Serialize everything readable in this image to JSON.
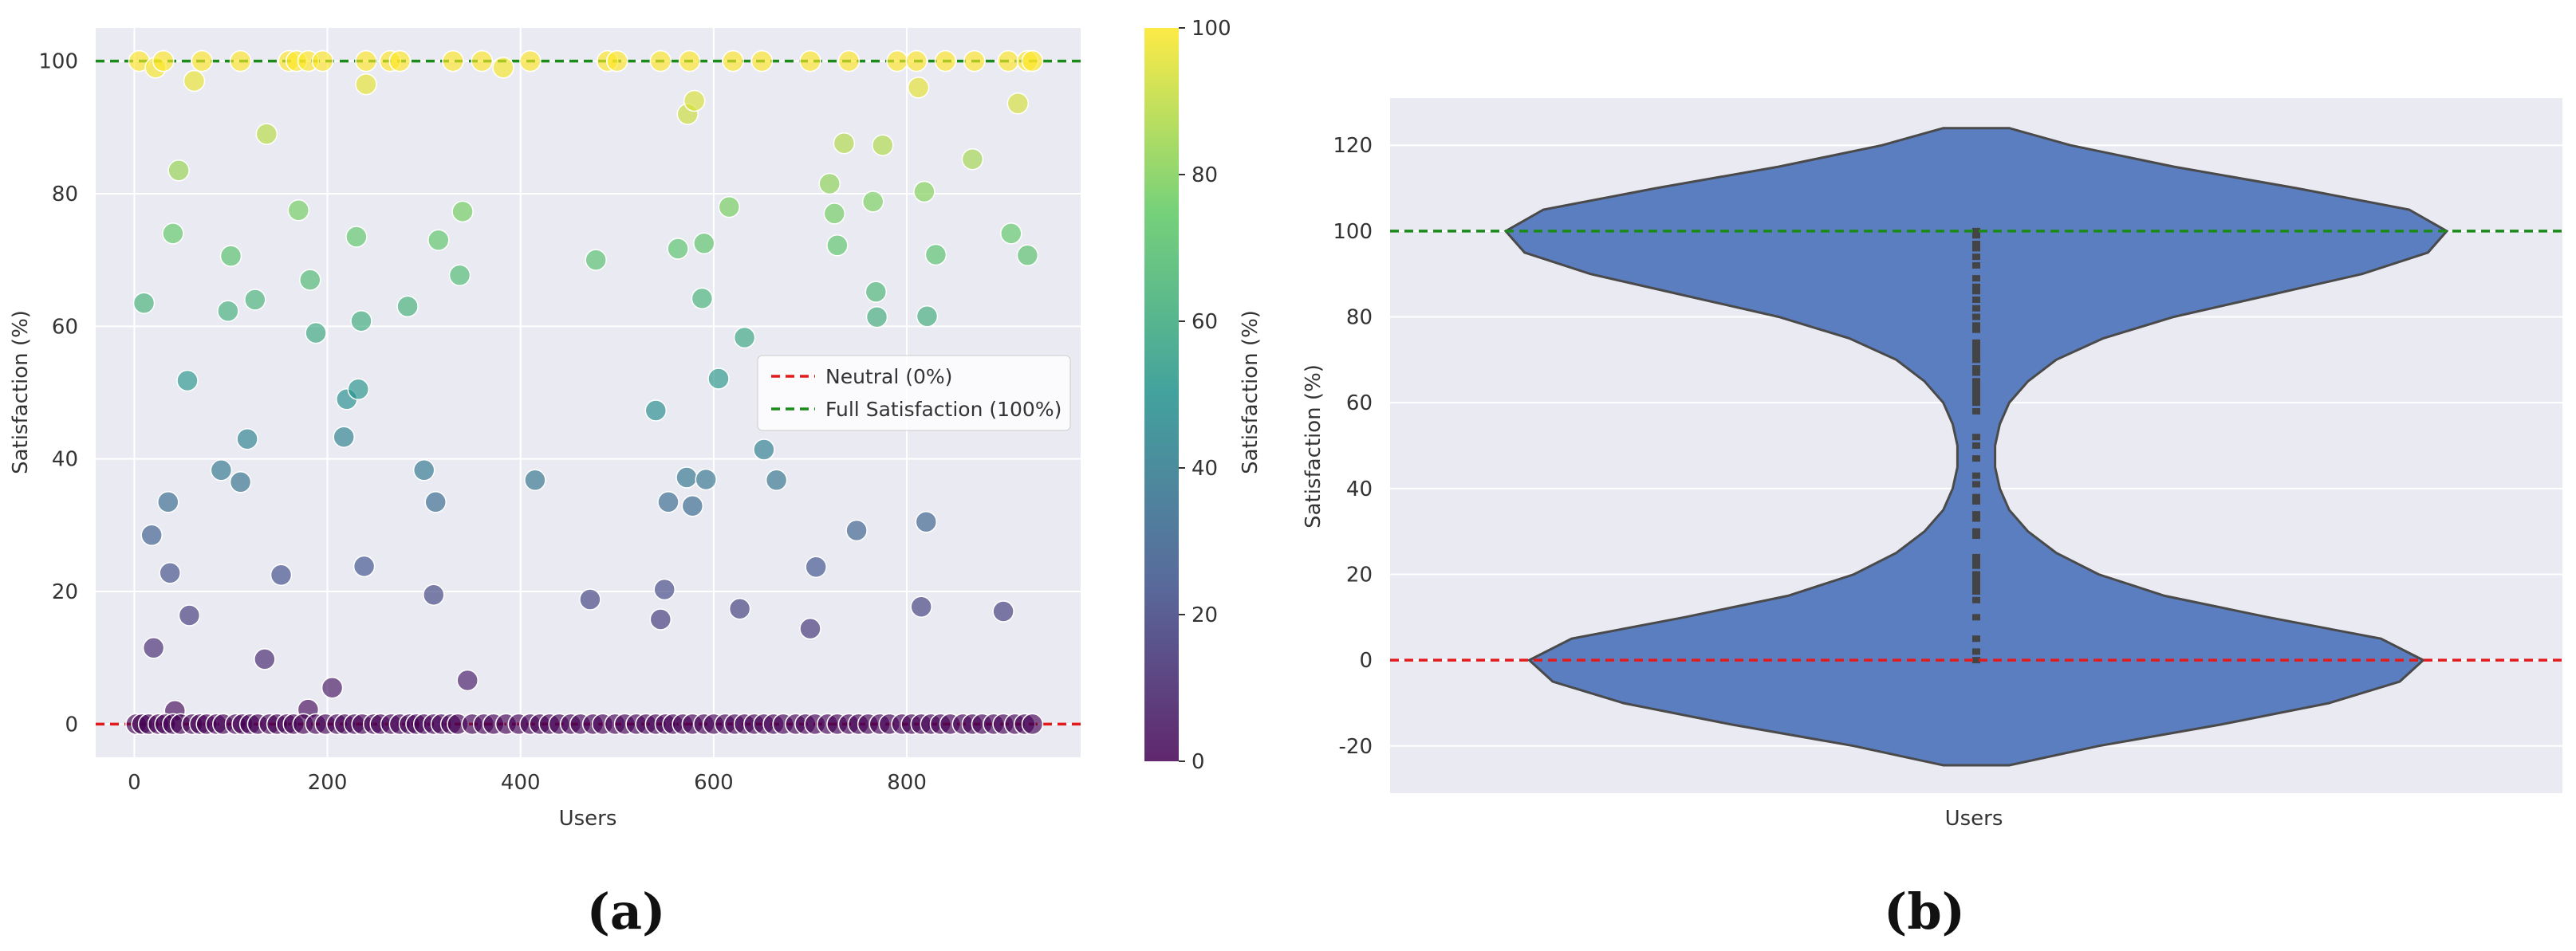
{
  "chart_data": [
    {
      "panel_label": "(a)",
      "type": "scatter",
      "title": "",
      "xlabel": "Users",
      "ylabel": "Satisfaction (%)",
      "xlim": [
        -40,
        980
      ],
      "ylim": [
        -5,
        105
      ],
      "xticks": [
        0,
        200,
        400,
        600,
        800
      ],
      "yticks": [
        0,
        20,
        40,
        60,
        80,
        100
      ],
      "grid": true,
      "legend_position": "center-right",
      "colorbar": {
        "label": "Satisfaction (%)",
        "ticks": [
          0,
          20,
          40,
          60,
          80,
          100
        ],
        "colormap": "viridis"
      },
      "reference_lines": [
        {
          "name": "Neutral (0%)",
          "y": 0,
          "color": "#e31a1c",
          "style": "dashed"
        },
        {
          "name": "Full Satisfaction (100%)",
          "y": 100,
          "color": "#1a8a1a",
          "style": "dashed"
        }
      ],
      "points": [
        [
          10,
          63.5
        ],
        [
          18,
          28.5
        ],
        [
          20,
          11.5
        ],
        [
          35,
          33.5
        ],
        [
          37,
          22.8
        ],
        [
          40,
          74
        ],
        [
          42,
          2
        ],
        [
          46,
          83.5
        ],
        [
          55,
          51.8
        ],
        [
          57,
          16.4
        ],
        [
          62,
          97
        ],
        [
          90,
          38.3
        ],
        [
          97,
          62.3
        ],
        [
          100,
          70.6
        ],
        [
          110,
          36.5
        ],
        [
          117,
          43
        ],
        [
          125,
          64
        ],
        [
          135,
          9.8
        ],
        [
          137,
          89
        ],
        [
          152,
          22.5
        ],
        [
          170,
          77.5
        ],
        [
          180,
          2.2
        ],
        [
          182,
          67
        ],
        [
          188,
          59
        ],
        [
          205,
          5.5
        ],
        [
          217,
          43.3
        ],
        [
          220,
          49
        ],
        [
          230,
          73.5
        ],
        [
          232,
          50.5
        ],
        [
          235,
          60.8
        ],
        [
          238,
          23.8
        ],
        [
          240,
          96.5
        ],
        [
          283,
          63
        ],
        [
          300,
          38.3
        ],
        [
          310,
          19.5
        ],
        [
          312,
          33.5
        ],
        [
          315,
          73
        ],
        [
          337,
          67.7
        ],
        [
          340,
          77.3
        ],
        [
          345,
          6.6
        ],
        [
          382,
          99
        ],
        [
          415,
          36.8
        ],
        [
          472,
          18.8
        ],
        [
          478,
          70
        ],
        [
          540,
          47.3
        ],
        [
          545,
          15.8
        ],
        [
          549,
          20.3
        ],
        [
          553,
          33.5
        ],
        [
          563,
          71.7
        ],
        [
          572,
          37.2
        ],
        [
          573,
          92
        ],
        [
          578,
          32.9
        ],
        [
          580,
          94
        ],
        [
          588,
          64.2
        ],
        [
          590,
          72.5
        ],
        [
          592,
          36.9
        ],
        [
          605,
          52.1
        ],
        [
          616,
          78
        ],
        [
          627,
          17.4
        ],
        [
          632,
          58.3
        ],
        [
          652,
          41.4
        ],
        [
          665,
          36.8
        ],
        [
          700,
          14.4
        ],
        [
          706,
          23.7
        ],
        [
          720,
          81.5
        ],
        [
          725,
          77
        ],
        [
          728,
          72.2
        ],
        [
          735,
          87.6
        ],
        [
          748,
          29.2
        ],
        [
          765,
          78.8
        ],
        [
          768,
          65.2
        ],
        [
          769,
          61.4
        ],
        [
          775,
          87.3
        ],
        [
          812,
          96
        ],
        [
          815,
          17.7
        ],
        [
          818,
          80.3
        ],
        [
          820,
          30.5
        ],
        [
          821,
          61.5
        ],
        [
          830,
          70.8
        ],
        [
          868,
          85.2
        ],
        [
          900,
          17
        ],
        [
          908,
          74
        ],
        [
          915,
          93.6
        ],
        [
          925,
          70.7
        ],
        [
          5,
          100
        ],
        [
          22,
          99
        ],
        [
          30,
          100
        ],
        [
          70,
          100
        ],
        [
          110,
          100
        ],
        [
          160,
          100
        ],
        [
          168,
          100
        ],
        [
          180,
          100
        ],
        [
          195,
          100
        ],
        [
          240,
          100
        ],
        [
          265,
          100
        ],
        [
          275,
          100
        ],
        [
          330,
          100
        ],
        [
          360,
          100
        ],
        [
          410,
          100
        ],
        [
          490,
          100
        ],
        [
          500,
          100
        ],
        [
          545,
          100
        ],
        [
          575,
          100
        ],
        [
          620,
          100
        ],
        [
          650,
          100
        ],
        [
          700,
          100
        ],
        [
          740,
          100
        ],
        [
          790,
          100
        ],
        [
          810,
          100
        ],
        [
          840,
          100
        ],
        [
          870,
          100
        ],
        [
          905,
          100
        ],
        [
          925,
          100
        ],
        [
          930,
          100
        ],
        [
          2,
          0
        ],
        [
          8,
          0
        ],
        [
          15,
          0
        ],
        [
          25,
          0
        ],
        [
          32,
          0
        ],
        [
          40,
          0
        ],
        [
          48,
          0
        ],
        [
          60,
          0
        ],
        [
          68,
          0
        ],
        [
          75,
          0
        ],
        [
          85,
          0
        ],
        [
          92,
          0
        ],
        [
          105,
          0
        ],
        [
          112,
          0
        ],
        [
          120,
          0
        ],
        [
          128,
          0
        ],
        [
          140,
          0
        ],
        [
          148,
          0
        ],
        [
          158,
          0
        ],
        [
          165,
          0
        ],
        [
          175,
          0
        ],
        [
          188,
          0
        ],
        [
          198,
          0
        ],
        [
          210,
          0
        ],
        [
          218,
          0
        ],
        [
          228,
          0
        ],
        [
          236,
          0
        ],
        [
          248,
          0
        ],
        [
          255,
          0
        ],
        [
          266,
          0
        ],
        [
          275,
          0
        ],
        [
          285,
          0
        ],
        [
          292,
          0
        ],
        [
          300,
          0
        ],
        [
          310,
          0
        ],
        [
          318,
          0
        ],
        [
          328,
          0
        ],
        [
          335,
          0
        ],
        [
          350,
          0
        ],
        [
          362,
          0
        ],
        [
          372,
          0
        ],
        [
          385,
          0
        ],
        [
          398,
          0
        ],
        [
          410,
          0
        ],
        [
          420,
          0
        ],
        [
          430,
          0
        ],
        [
          440,
          0
        ],
        [
          452,
          0
        ],
        [
          462,
          0
        ],
        [
          475,
          0
        ],
        [
          485,
          0
        ],
        [
          498,
          0
        ],
        [
          508,
          0
        ],
        [
          520,
          0
        ],
        [
          530,
          0
        ],
        [
          540,
          0
        ],
        [
          550,
          0
        ],
        [
          558,
          0
        ],
        [
          568,
          0
        ],
        [
          578,
          0
        ],
        [
          590,
          0
        ],
        [
          600,
          0
        ],
        [
          612,
          0
        ],
        [
          622,
          0
        ],
        [
          632,
          0
        ],
        [
          642,
          0
        ],
        [
          652,
          0
        ],
        [
          662,
          0
        ],
        [
          672,
          0
        ],
        [
          685,
          0
        ],
        [
          695,
          0
        ],
        [
          705,
          0
        ],
        [
          718,
          0
        ],
        [
          728,
          0
        ],
        [
          740,
          0
        ],
        [
          750,
          0
        ],
        [
          760,
          0
        ],
        [
          772,
          0
        ],
        [
          782,
          0
        ],
        [
          795,
          0
        ],
        [
          805,
          0
        ],
        [
          815,
          0
        ],
        [
          825,
          0
        ],
        [
          835,
          0
        ],
        [
          845,
          0
        ],
        [
          858,
          0
        ],
        [
          868,
          0
        ],
        [
          878,
          0
        ],
        [
          890,
          0
        ],
        [
          900,
          0
        ],
        [
          912,
          0
        ],
        [
          922,
          0
        ],
        [
          930,
          0
        ]
      ]
    },
    {
      "panel_label": "(b)",
      "type": "violin",
      "title": "",
      "xlabel": "Users",
      "ylabel": "Satisfaction (%)",
      "ylim": [
        -31,
        131
      ],
      "yticks": [
        -20,
        0,
        20,
        40,
        60,
        80,
        100,
        120
      ],
      "grid": true,
      "violin_color": "#5b7ec1",
      "violin_extent": [
        -24.5,
        124
      ],
      "reference_lines": [
        {
          "y": 0,
          "color": "#e31a1c",
          "style": "dashed"
        },
        {
          "y": 100,
          "color": "#1a8a1a",
          "style": "dashed"
        }
      ],
      "density_profile": [
        [
          -24.5,
          0.07
        ],
        [
          -20,
          0.26
        ],
        [
          -15,
          0.52
        ],
        [
          -10,
          0.75
        ],
        [
          -5,
          0.9
        ],
        [
          0,
          0.95
        ],
        [
          5,
          0.86
        ],
        [
          10,
          0.62
        ],
        [
          15,
          0.4
        ],
        [
          20,
          0.26
        ],
        [
          25,
          0.17
        ],
        [
          30,
          0.11
        ],
        [
          35,
          0.07
        ],
        [
          40,
          0.05
        ],
        [
          45,
          0.04
        ],
        [
          50,
          0.04
        ],
        [
          55,
          0.05
        ],
        [
          60,
          0.07
        ],
        [
          65,
          0.11
        ],
        [
          70,
          0.17
        ],
        [
          75,
          0.27
        ],
        [
          80,
          0.42
        ],
        [
          85,
          0.62
        ],
        [
          90,
          0.82
        ],
        [
          95,
          0.96
        ],
        [
          100,
          1.0
        ],
        [
          105,
          0.92
        ],
        [
          110,
          0.68
        ],
        [
          115,
          0.42
        ],
        [
          120,
          0.2
        ],
        [
          124,
          0.07
        ]
      ],
      "inner_points": [
        0,
        2,
        5,
        10,
        14,
        16,
        17,
        18,
        19,
        20,
        22,
        23,
        24,
        29,
        30,
        33,
        34,
        37,
        38,
        41,
        43,
        47,
        50,
        52,
        58,
        60,
        61,
        62,
        63,
        64,
        65,
        67,
        68,
        70,
        71,
        72,
        73,
        74,
        77,
        78,
        80,
        82,
        84,
        86,
        87,
        89,
        92,
        94,
        96,
        97,
        99,
        100
      ]
    }
  ]
}
